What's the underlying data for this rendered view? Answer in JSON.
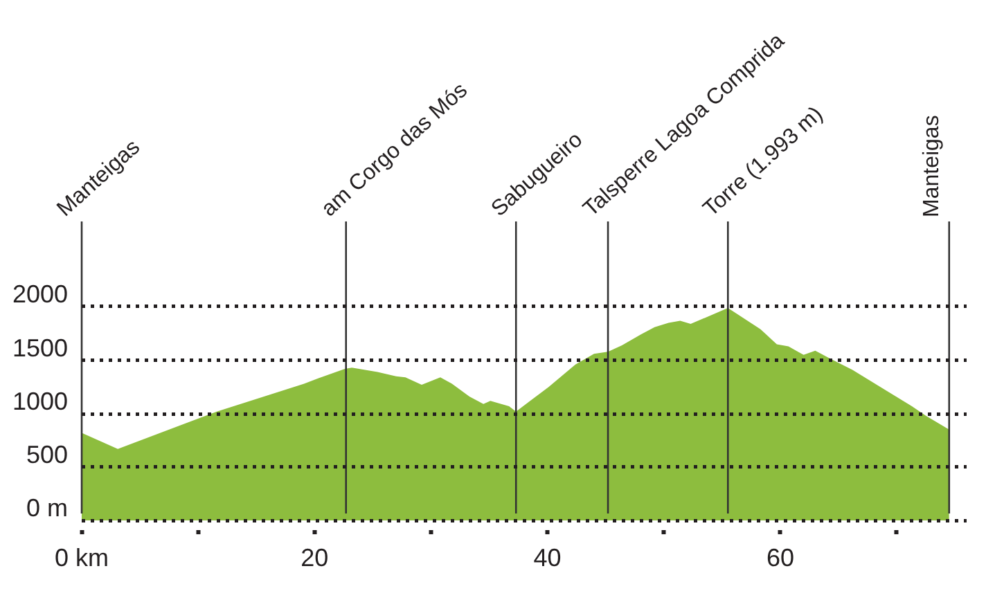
{
  "chart_data": {
    "type": "area",
    "color": "#8dbd3e",
    "x": [
      0,
      3.1,
      11.6,
      19.1,
      20.3,
      22.6,
      23.2,
      25.4,
      27.0,
      27.8,
      29.2,
      30.8,
      31.8,
      33.3,
      34.5,
      35.1,
      36.7,
      37.3,
      40.1,
      42.4,
      44.0,
      45.2,
      46.4,
      48.0,
      49.2,
      50.4,
      51.4,
      52.3,
      55.5,
      58.3,
      59.7,
      60.7,
      62.0,
      63.0,
      64.2,
      66.2,
      68.6,
      71.3,
      72.5,
      74.5
    ],
    "values": [
      820,
      670,
      1020,
      1280,
      1330,
      1420,
      1430,
      1390,
      1350,
      1340,
      1270,
      1340,
      1280,
      1160,
      1090,
      1120,
      1070,
      1020,
      1250,
      1460,
      1560,
      1580,
      1640,
      1740,
      1810,
      1850,
      1870,
      1840,
      1990,
      1790,
      1650,
      1630,
      1550,
      1590,
      1520,
      1410,
      1250,
      1070,
      980,
      850
    ],
    "xlim": [
      0,
      76
    ],
    "xticks": [
      {
        "value": 0,
        "label": "0 km"
      },
      {
        "value": 10,
        "label": null
      },
      20,
      {
        "value": 30,
        "label": null
      },
      40,
      {
        "value": 50,
        "label": null
      },
      60,
      {
        "value": 70,
        "label": null
      }
    ],
    "ylim": [
      0,
      2800
    ],
    "yticks": [
      {
        "value": 0,
        "label": "0 m"
      },
      500,
      1000,
      1500,
      2000
    ],
    "grid": "y",
    "ref_lines": [
      {
        "axis": "x",
        "value": 0,
        "label": "Manteigas",
        "color": "#333333"
      },
      {
        "axis": "x",
        "value": 22.7,
        "label": "am Corgo das Mós",
        "color": "#333333"
      },
      {
        "axis": "x",
        "value": 37.3,
        "label": "Sabugueiro",
        "color": "#333333"
      },
      {
        "axis": "x",
        "value": 45.2,
        "label": "Talsperre Lagoa Comprida",
        "color": "#333333"
      },
      {
        "axis": "x",
        "value": 55.5,
        "label": "Torre (1.993 m)",
        "color": "#333333"
      },
      {
        "axis": "x",
        "value": 74.5,
        "label": "Manteigas",
        "color": "#333333"
      }
    ]
  }
}
